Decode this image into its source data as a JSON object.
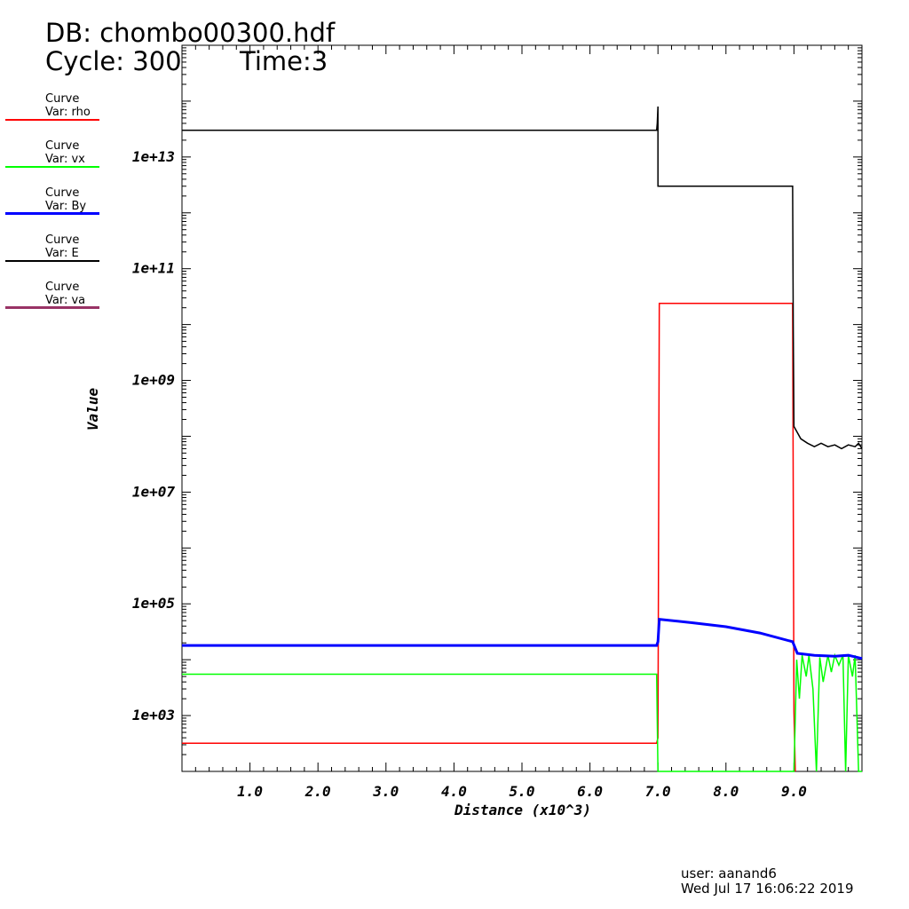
{
  "header": {
    "db_label": "DB: chombo00300.hdf",
    "cycle_label": "Cycle: 300",
    "time_label": "Time:3"
  },
  "legend": [
    {
      "title": "Curve",
      "var": "Var: rho",
      "color": "#ff0000"
    },
    {
      "title": "Curve",
      "var": "Var: vx",
      "color": "#00ff00"
    },
    {
      "title": "Curve",
      "var": "Var: By",
      "color": "#0000ff"
    },
    {
      "title": "Curve",
      "var": "Var: E",
      "color": "#000000"
    },
    {
      "title": "Curve",
      "var": "Var: va",
      "color": "#993366"
    }
  ],
  "footer": {
    "user": "user: aanand6",
    "date": "Wed Jul 17 16:06:22 2019"
  },
  "chart_data": {
    "type": "line",
    "xlabel": "Distance (x10^3)",
    "ylabel": "Value",
    "xlim": [
      0.0,
      10.0
    ],
    "ylim": [
      100,
      1000000000000000.0
    ],
    "yscale": "log",
    "x_ticks": [
      "1.0",
      "2.0",
      "3.0",
      "4.0",
      "5.0",
      "6.0",
      "7.0",
      "8.0",
      "9.0"
    ],
    "y_ticks": [
      "1e+03",
      "1e+05",
      "1e+07",
      "1e+09",
      "1e+11",
      "1e+13"
    ],
    "grid": false,
    "series": [
      {
        "name": "rho",
        "color": "#ff0000",
        "width": 1.5,
        "points": [
          [
            0.0,
            320
          ],
          [
            6.98,
            320
          ],
          [
            7.0,
            400
          ],
          [
            7.02,
            24000000000.0
          ],
          [
            8.98,
            24000000000.0
          ],
          [
            9.0,
            1200.0
          ],
          [
            9.02,
            100
          ]
        ]
      },
      {
        "name": "vx",
        "color": "#00ff00",
        "width": 1.5,
        "points": [
          [
            0.0,
            5500.0
          ],
          [
            6.98,
            5500.0
          ],
          [
            7.0,
            100
          ],
          [
            8.98,
            100
          ],
          [
            9.0,
            100
          ],
          [
            9.04,
            10000.0
          ],
          [
            9.08,
            2000.0
          ],
          [
            9.12,
            12000.0
          ],
          [
            9.18,
            5000.0
          ],
          [
            9.22,
            12000.0
          ],
          [
            9.28,
            3000.0
          ],
          [
            9.33,
            100
          ],
          [
            9.38,
            11000.0
          ],
          [
            9.43,
            4000.0
          ],
          [
            9.5,
            12000.0
          ],
          [
            9.55,
            6000.0
          ],
          [
            9.6,
            12000.0
          ],
          [
            9.66,
            8000.0
          ],
          [
            9.72,
            12000.0
          ],
          [
            9.76,
            100
          ],
          [
            9.8,
            12000.0
          ],
          [
            9.86,
            5000.0
          ],
          [
            9.9,
            12000.0
          ],
          [
            9.95,
            100
          ],
          [
            10.0,
            100
          ]
        ]
      },
      {
        "name": "By",
        "color": "#0000ff",
        "width": 3,
        "points": [
          [
            0.0,
            18000.0
          ],
          [
            6.98,
            18000.0
          ],
          [
            7.0,
            21000.0
          ],
          [
            7.02,
            53000.0
          ],
          [
            7.5,
            46000.0
          ],
          [
            8.0,
            39000.0
          ],
          [
            8.5,
            30000.0
          ],
          [
            8.98,
            21000.0
          ],
          [
            9.05,
            13000.0
          ],
          [
            9.3,
            12000.0
          ],
          [
            9.6,
            11500.0
          ],
          [
            9.8,
            12000.0
          ],
          [
            10.0,
            10500.0
          ]
        ]
      },
      {
        "name": "E",
        "color": "#000000",
        "width": 1.5,
        "points": [
          [
            0.0,
            30000000000000.0
          ],
          [
            6.98,
            30000000000000.0
          ],
          [
            6.99,
            40000000000000.0
          ],
          [
            7.0,
            80000000000000.0
          ],
          [
            7.0,
            3000000000000.0
          ],
          [
            8.98,
            3000000000000.0
          ],
          [
            8.99,
            10000000000.0
          ],
          [
            9.0,
            150000000.0
          ],
          [
            9.1,
            90000000.0
          ],
          [
            9.2,
            75000000.0
          ],
          [
            9.3,
            65000000.0
          ],
          [
            9.4,
            75000000.0
          ],
          [
            9.5,
            65000000.0
          ],
          [
            9.6,
            70000000.0
          ],
          [
            9.7,
            60000000.0
          ],
          [
            9.8,
            70000000.0
          ],
          [
            9.9,
            65000000.0
          ],
          [
            9.95,
            75000000.0
          ],
          [
            10.0,
            60000000.0
          ]
        ]
      },
      {
        "name": "va",
        "color": "#993366",
        "width": 1.5,
        "points": []
      }
    ]
  }
}
